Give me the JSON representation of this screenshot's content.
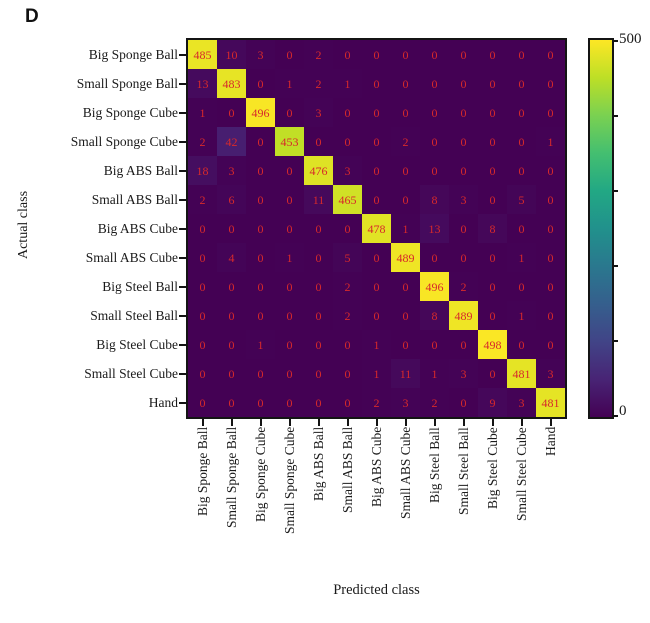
{
  "panel_label": "D",
  "chart_data": {
    "type": "heatmap",
    "title": "",
    "xlabel": "Predicted class",
    "ylabel": "Actual class",
    "classes": [
      "Big Sponge Ball",
      "Small Sponge Ball",
      "Big Sponge Cube",
      "Small Sponge Cube",
      "Big ABS Ball",
      "Small ABS Ball",
      "Big ABS Cube",
      "Small ABS Cube",
      "Big Steel Ball",
      "Small Steel Ball",
      "Big Steel Cube",
      "Small Steel Cube",
      "Hand"
    ],
    "matrix": [
      [
        485,
        10,
        3,
        0,
        2,
        0,
        0,
        0,
        0,
        0,
        0,
        0,
        0
      ],
      [
        13,
        483,
        0,
        1,
        2,
        1,
        0,
        0,
        0,
        0,
        0,
        0,
        0
      ],
      [
        1,
        0,
        496,
        0,
        3,
        0,
        0,
        0,
        0,
        0,
        0,
        0,
        0
      ],
      [
        2,
        42,
        0,
        453,
        0,
        0,
        0,
        2,
        0,
        0,
        0,
        0,
        1
      ],
      [
        18,
        3,
        0,
        0,
        476,
        3,
        0,
        0,
        0,
        0,
        0,
        0,
        0
      ],
      [
        2,
        6,
        0,
        0,
        11,
        465,
        0,
        0,
        8,
        3,
        0,
        5,
        0
      ],
      [
        0,
        0,
        0,
        0,
        0,
        0,
        478,
        1,
        13,
        0,
        8,
        0,
        0
      ],
      [
        0,
        4,
        0,
        1,
        0,
        5,
        0,
        489,
        0,
        0,
        0,
        1,
        0
      ],
      [
        0,
        0,
        0,
        0,
        0,
        2,
        0,
        0,
        496,
        2,
        0,
        0,
        0
      ],
      [
        0,
        0,
        0,
        0,
        0,
        2,
        0,
        0,
        8,
        489,
        0,
        1,
        0
      ],
      [
        0,
        0,
        1,
        0,
        0,
        0,
        1,
        0,
        0,
        0,
        498,
        0,
        0
      ],
      [
        0,
        0,
        0,
        0,
        0,
        0,
        1,
        11,
        1,
        3,
        0,
        481,
        3
      ],
      [
        0,
        0,
        0,
        0,
        0,
        0,
        2,
        3,
        2,
        0,
        9,
        3,
        481
      ]
    ],
    "colorbar": {
      "min": 0,
      "max": 500,
      "min_label": "0",
      "max_label": "500",
      "colormap": "viridis",
      "unlabeled_ticks": [
        100,
        200,
        300,
        400
      ]
    },
    "legend_position": "right",
    "grid": false
  },
  "colors": {
    "cell_text": "#d7292b",
    "axis_text": "#1a1a1a",
    "frame": "#141414",
    "viridis_min": "#440154",
    "viridis_max": "#fde725",
    "background": "#ffffff"
  }
}
